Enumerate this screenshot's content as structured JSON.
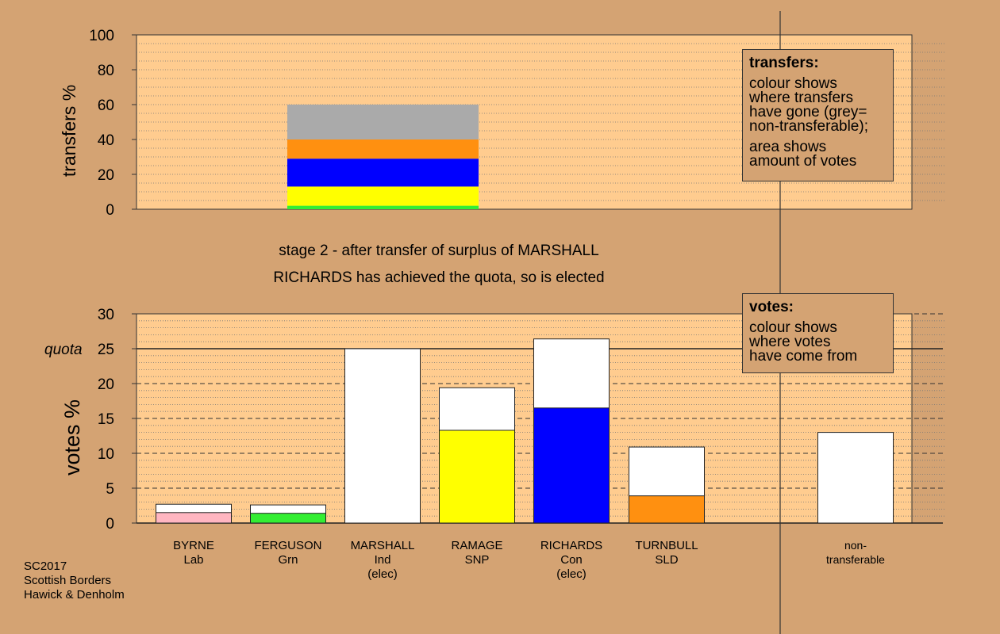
{
  "stage_line1": "stage 2 - after transfer of surplus of MARSHALL",
  "stage_line2": "RICHARDS has achieved the quota, so is elected",
  "legend_transfers": {
    "title": "transfers:",
    "lines_a": [
      "colour shows",
      "where transfers",
      "have gone (grey=",
      "non-transferable);"
    ],
    "lines_b": [
      "area shows",
      "amount of votes"
    ]
  },
  "legend_votes": {
    "title": "votes:",
    "lines": [
      "colour shows",
      "where votes",
      "have come from"
    ]
  },
  "footer": [
    "SC2017",
    "Scottish Borders",
    "Hawick & Denholm"
  ],
  "colors": {
    "background": "#d4a373",
    "plot_bg": "#ffcc8f",
    "grey": "#aaaaaa",
    "orange": "#ff9010",
    "blue": "#0000ff",
    "yellow": "#ffff00",
    "green": "#33ee33",
    "pink": "#ffb6c1",
    "white": "#ffffff"
  },
  "chart_data": [
    {
      "type": "bar",
      "name": "transfers",
      "ylabel": "transfers %",
      "ylim": [
        0,
        100
      ],
      "yticks": [
        0,
        20,
        40,
        60,
        80,
        100
      ],
      "segments": [
        {
          "color": "green",
          "value": 2
        },
        {
          "color": "yellow",
          "value": 11
        },
        {
          "color": "blue",
          "value": 16
        },
        {
          "color": "orange",
          "value": 11
        },
        {
          "color": "grey",
          "value": 20
        }
      ]
    },
    {
      "type": "bar",
      "name": "votes",
      "ylabel": "votes %",
      "ylim": [
        0,
        30
      ],
      "yticks": [
        0,
        5,
        10,
        15,
        20,
        25,
        30
      ],
      "quota_label": "quota",
      "quota": 25,
      "candidates": [
        {
          "name": "BYRNE",
          "party": "Lab",
          "extra": "",
          "total": 2.7,
          "transfer_color": "pink",
          "transfer": 1.5
        },
        {
          "name": "FERGUSON",
          "party": "Grn",
          "extra": "",
          "total": 2.6,
          "transfer_color": "green",
          "transfer": 1.4
        },
        {
          "name": "MARSHALL",
          "party": "Ind",
          "extra": "(elec)",
          "total": 25.0,
          "transfer_color": "white",
          "transfer": 0
        },
        {
          "name": "RAMAGE",
          "party": "SNP",
          "extra": "",
          "total": 19.4,
          "transfer_color": "yellow",
          "transfer": 13.3
        },
        {
          "name": "RICHARDS",
          "party": "Con",
          "extra": "(elec)",
          "total": 26.4,
          "transfer_color": "blue",
          "transfer": 16.5
        },
        {
          "name": "TURNBULL",
          "party": "SLD",
          "extra": "",
          "total": 10.9,
          "transfer_color": "orange",
          "transfer": 3.9
        },
        {
          "name": "non-",
          "party": "transferable",
          "extra": "",
          "total": 13.0,
          "transfer_color": "white",
          "transfer": 0
        }
      ]
    }
  ]
}
